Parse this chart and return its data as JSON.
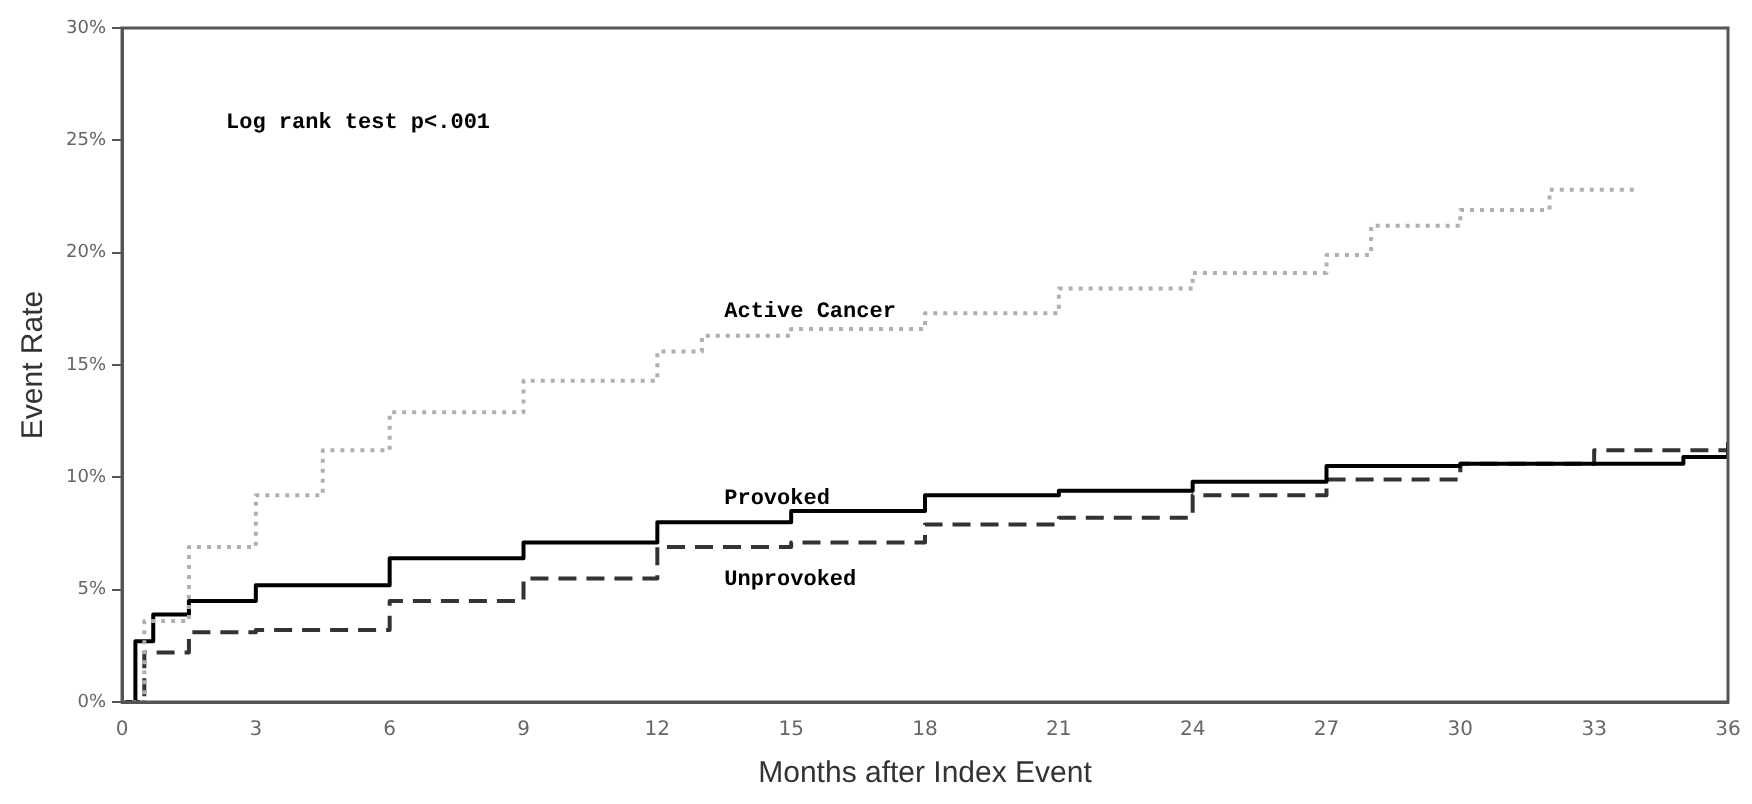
{
  "chart_data": {
    "type": "step",
    "xlabel": "Months after Index Event",
    "ylabel": "Event Rate",
    "annotations": [
      "Log rank test p<.001"
    ],
    "xlim": [
      0,
      36
    ],
    "xticks": [
      0,
      3,
      6,
      9,
      12,
      15,
      18,
      21,
      24,
      27,
      30,
      33,
      36
    ],
    "ylim": [
      0,
      30
    ],
    "yticks": [
      {
        "value": 0,
        "label": "0%"
      },
      {
        "value": 5,
        "label": "5%"
      },
      {
        "value": 10,
        "label": "10%"
      },
      {
        "value": 15,
        "label": "15%"
      },
      {
        "value": 20,
        "label": "20%"
      },
      {
        "value": 25,
        "label": "25%"
      },
      {
        "value": 30,
        "label": "30%"
      }
    ],
    "grid": false,
    "legend": false,
    "marker": "none",
    "series": [
      {
        "name": "Active Cancer",
        "color": "#b0b0b0",
        "line_style": "dotted",
        "x": [
          0,
          0.5,
          1.5,
          3,
          4.5,
          6,
          9,
          12,
          13,
          15,
          18,
          21,
          24,
          27,
          28,
          30,
          32,
          34
        ],
        "values": [
          0,
          3.6,
          6.9,
          9.2,
          11.2,
          12.9,
          14.3,
          15.6,
          16.3,
          16.6,
          17.3,
          18.4,
          19.1,
          19.9,
          21.2,
          21.9,
          22.8,
          22.8
        ]
      },
      {
        "name": "Provoked",
        "color": "#000000",
        "line_style": "solid",
        "x": [
          0,
          0.3,
          0.7,
          1.5,
          3,
          6,
          9,
          12,
          15,
          18,
          21,
          24,
          27,
          30,
          33,
          35,
          36
        ],
        "values": [
          0,
          2.7,
          3.9,
          4.5,
          5.2,
          6.4,
          7.1,
          8.0,
          8.5,
          9.2,
          9.4,
          9.8,
          10.5,
          10.6,
          10.6,
          10.9,
          11.5
        ]
      },
      {
        "name": "Unprovoked",
        "color": "#333333",
        "line_style": "dashed",
        "x": [
          0,
          0.5,
          1.5,
          3,
          6,
          9,
          12,
          15,
          18,
          21,
          24,
          27,
          30,
          33,
          36
        ],
        "values": [
          0,
          2.2,
          3.1,
          3.2,
          4.5,
          5.5,
          6.9,
          7.1,
          7.9,
          8.2,
          9.2,
          9.9,
          10.6,
          11.2,
          11.9
        ]
      }
    ]
  }
}
